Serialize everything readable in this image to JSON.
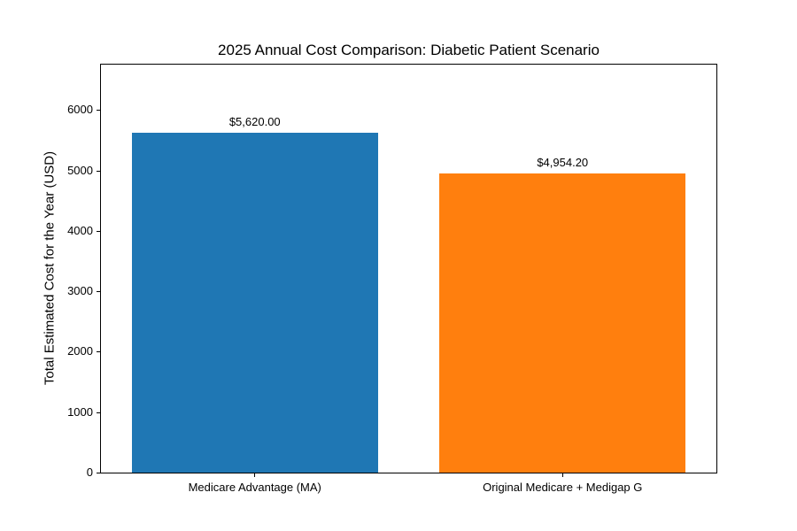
{
  "chart_data": {
    "type": "bar",
    "title": "2025 Annual Cost Comparison: Diabetic Patient Scenario",
    "ylabel": "Total Estimated Cost for the Year (USD)",
    "xlabel": "",
    "categories": [
      "Medicare Advantage (MA)",
      "Original Medicare + Medigap G"
    ],
    "values": [
      5620.0,
      4954.2
    ],
    "value_labels": [
      "$5,620.00",
      "$4,954.20"
    ],
    "bar_colors": [
      "#1f77b4",
      "#ff7f0e"
    ],
    "yticks": [
      0,
      1000,
      2000,
      3000,
      4000,
      5000,
      6000
    ],
    "ylim": [
      0,
      6750
    ],
    "bar_width_fraction": 0.4,
    "grid": false,
    "legend": null,
    "background_color": "#ffffff",
    "frame_color": "#000000",
    "text_color": "#000000"
  }
}
